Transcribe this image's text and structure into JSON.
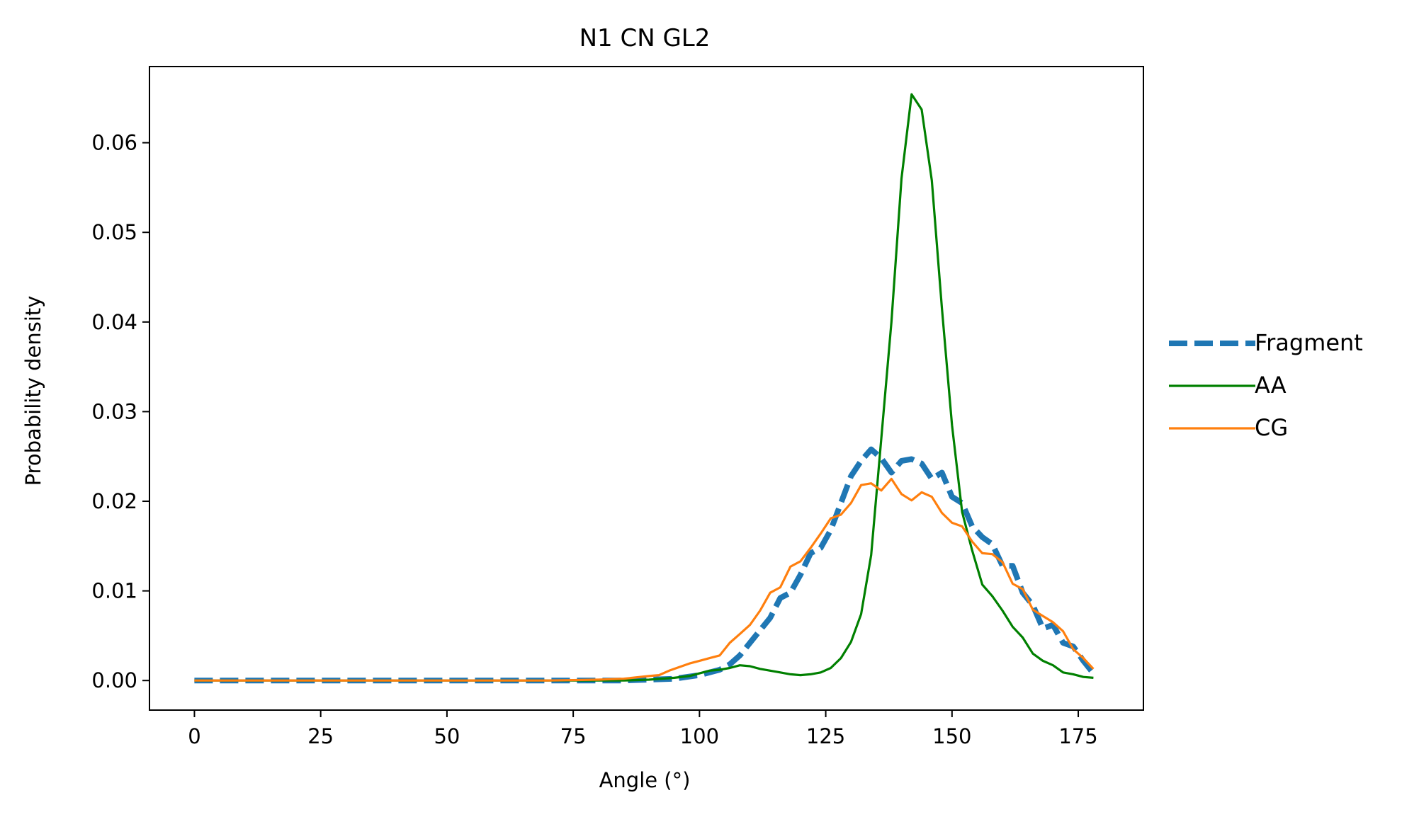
{
  "chart_data": {
    "type": "line",
    "title": "N1 CN GL2",
    "xlabel": "Angle (°)",
    "ylabel": "Probability density",
    "xlim": [
      -8.9,
      187.9
    ],
    "ylim": [
      -0.0033,
      0.0685
    ],
    "xticks": [
      0,
      25,
      50,
      75,
      100,
      125,
      150,
      175
    ],
    "xtick_labels": [
      "0",
      "25",
      "50",
      "75",
      "100",
      "125",
      "150",
      "175"
    ],
    "yticks": [
      0,
      0.01,
      0.02,
      0.03,
      0.04,
      0.05,
      0.06
    ],
    "ytick_labels": [
      "0.00",
      "0.01",
      "0.02",
      "0.03",
      "0.04",
      "0.05",
      "0.06"
    ],
    "grid": false,
    "legend_position": "outside-right",
    "series": [
      {
        "name": "Fragment",
        "color": "#1f77b4",
        "style": "dashed",
        "x": [
          0,
          5,
          10,
          20,
          30,
          40,
          50,
          60,
          70,
          80,
          85,
          90,
          95,
          100,
          104,
          106,
          108,
          110,
          112,
          114,
          116,
          118,
          120,
          122,
          124,
          126,
          128,
          130,
          132,
          134,
          136,
          138,
          140,
          142,
          144,
          146,
          148,
          150,
          152,
          154,
          156,
          158,
          160,
          162,
          164,
          166,
          168,
          170,
          172,
          174,
          176,
          178
        ],
        "y": [
          0,
          0,
          0,
          0,
          0,
          0,
          0,
          0,
          0,
          0,
          0,
          0.0001,
          0.0002,
          0.0006,
          0.0012,
          0.0018,
          0.0028,
          0.0042,
          0.0056,
          0.007,
          0.0092,
          0.0098,
          0.0118,
          0.0142,
          0.0148,
          0.0168,
          0.0198,
          0.0228,
          0.0245,
          0.0258,
          0.0248,
          0.0232,
          0.0245,
          0.0247,
          0.0242,
          0.0225,
          0.0232,
          0.0205,
          0.0198,
          0.0172,
          0.016,
          0.0152,
          0.0128,
          0.0128,
          0.0098,
          0.0084,
          0.0058,
          0.0062,
          0.0042,
          0.0038,
          0.0022,
          0.0008
        ]
      },
      {
        "name": "AA",
        "color": "#008000",
        "style": "solid",
        "x": [
          0,
          10,
          20,
          30,
          40,
          50,
          60,
          70,
          80,
          85,
          90,
          95,
          98,
          100,
          102,
          104,
          106,
          108,
          110,
          112,
          114,
          116,
          118,
          120,
          122,
          124,
          126,
          128,
          130,
          132,
          134,
          136,
          138,
          140,
          142,
          144,
          146,
          148,
          150,
          152,
          154,
          156,
          158,
          160,
          162,
          164,
          166,
          168,
          170,
          172,
          174,
          176,
          178
        ],
        "y": [
          0,
          0,
          0,
          0,
          0,
          0,
          0,
          0,
          0,
          0,
          0.0001,
          0.0003,
          0.0005,
          0.0008,
          0.0011,
          0.0012,
          0.0014,
          0.0017,
          0.0016,
          0.0013,
          0.0011,
          0.0009,
          0.0007,
          0.0006,
          0.0007,
          0.0009,
          0.0014,
          0.0025,
          0.0043,
          0.0074,
          0.014,
          0.027,
          0.04,
          0.056,
          0.0654,
          0.0637,
          0.0558,
          0.0415,
          0.0285,
          0.0188,
          0.0145,
          0.0107,
          0.0094,
          0.0078,
          0.006,
          0.0048,
          0.003,
          0.0022,
          0.0017,
          0.0009,
          0.0007,
          0.0004,
          0.0003
        ]
      },
      {
        "name": "CG",
        "color": "#ff7f0e",
        "style": "solid",
        "x": [
          0,
          10,
          20,
          30,
          40,
          50,
          60,
          70,
          80,
          85,
          90,
          92,
          94,
          96,
          98,
          100,
          102,
          104,
          106,
          108,
          110,
          112,
          114,
          116,
          118,
          120,
          122,
          124,
          126,
          128,
          130,
          132,
          134,
          136,
          138,
          140,
          142,
          144,
          146,
          148,
          150,
          152,
          154,
          156,
          158,
          160,
          162,
          164,
          166,
          168,
          170,
          172,
          174,
          176,
          178
        ],
        "y": [
          0,
          0,
          0,
          0,
          0,
          0,
          0,
          0,
          0.0001,
          0.0002,
          0.0005,
          0.0006,
          0.0011,
          0.0015,
          0.0019,
          0.0022,
          0.0025,
          0.0028,
          0.0042,
          0.0052,
          0.0062,
          0.0078,
          0.0098,
          0.0104,
          0.0127,
          0.0133,
          0.0148,
          0.0164,
          0.0181,
          0.0185,
          0.0198,
          0.0218,
          0.022,
          0.0212,
          0.0225,
          0.0208,
          0.0201,
          0.021,
          0.0205,
          0.0187,
          0.0176,
          0.0172,
          0.0155,
          0.0142,
          0.0141,
          0.0132,
          0.0108,
          0.0102,
          0.0079,
          0.0072,
          0.0065,
          0.0055,
          0.0035,
          0.0025,
          0.0013
        ]
      }
    ]
  }
}
